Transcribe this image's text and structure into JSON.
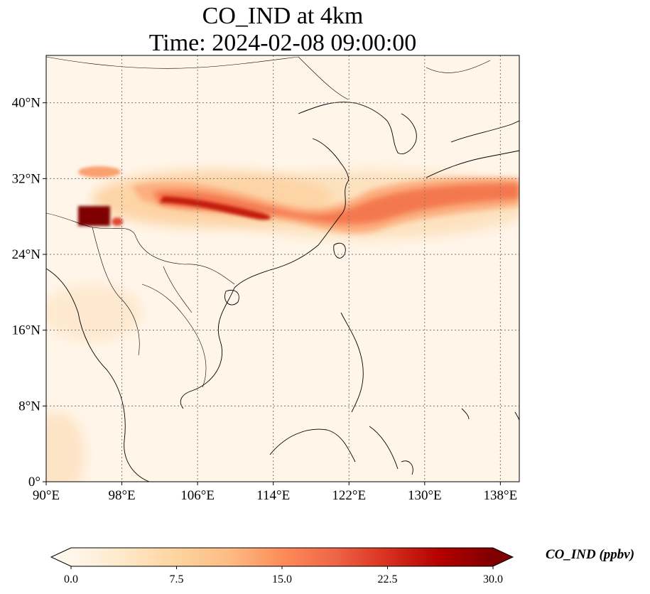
{
  "title": {
    "line1": "CO_IND at 4km",
    "line2": "Time: 2024-02-08 09:00:00"
  },
  "map": {
    "extent": {
      "lon": [
        90,
        140
      ],
      "lat": [
        0,
        45
      ]
    },
    "gridlines": "dotted gray",
    "x_ticks": [
      {
        "value": 90,
        "label": "90°E"
      },
      {
        "value": 98,
        "label": "98°E"
      },
      {
        "value": 106,
        "label": "106°E"
      },
      {
        "value": 114,
        "label": "114°E"
      },
      {
        "value": 122,
        "label": "122°E"
      },
      {
        "value": 130,
        "label": "130°E"
      },
      {
        "value": 138,
        "label": "138°E"
      }
    ],
    "y_ticks": [
      {
        "value": 0,
        "label": "0°"
      },
      {
        "value": 8,
        "label": "8°N"
      },
      {
        "value": 16,
        "label": "16°N"
      },
      {
        "value": 24,
        "label": "24°N"
      },
      {
        "value": 32,
        "label": "32°N"
      },
      {
        "value": 40,
        "label": "40°N"
      }
    ],
    "colormap": "OrRd"
  },
  "colorbar": {
    "label": "CO_IND (ppbv)",
    "range": [
      0,
      30
    ],
    "extend": "both",
    "ticks": [
      {
        "value": 0,
        "label": "0.0"
      },
      {
        "value": 7.5,
        "label": "7.5"
      },
      {
        "value": 15,
        "label": "15.0"
      },
      {
        "value": 22.5,
        "label": "22.5"
      },
      {
        "value": 30,
        "label": "30.0"
      }
    ],
    "colors": [
      "#fff7ec",
      "#fee8c8",
      "#fdd49e",
      "#fdbb84",
      "#fc8d59",
      "#ef6548",
      "#d7301f",
      "#b30000",
      "#7f0000"
    ]
  }
}
